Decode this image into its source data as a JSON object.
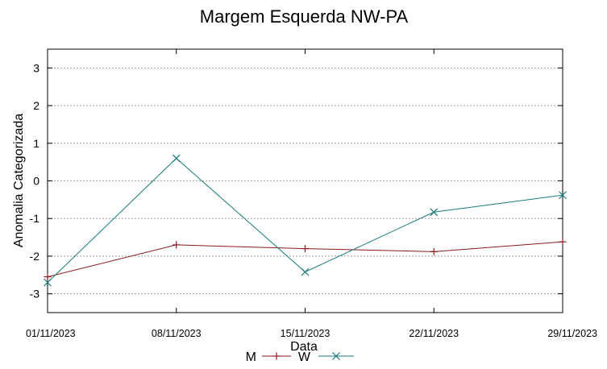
{
  "chart_data": {
    "type": "line",
    "title": "Margem Esquerda NW-PA",
    "xlabel": "Data",
    "ylabel": "Anomalia Categorizada",
    "categories": [
      "01/11/2023",
      "08/11/2023",
      "15/11/2023",
      "22/11/2023",
      "29/11/2023"
    ],
    "ylim": [
      -3.5,
      3.5
    ],
    "yticks": [
      -3,
      -2,
      -1,
      0,
      1,
      2,
      3
    ],
    "grid": "horizontal",
    "legend_position": "bottom",
    "series": [
      {
        "name": "M",
        "color": "#8b1a1a",
        "marker": "plus",
        "values": [
          -2.55,
          -1.7,
          -1.8,
          -1.88,
          -1.62
        ]
      },
      {
        "name": "W",
        "color": "#1a7a7a",
        "marker": "x",
        "values": [
          -2.7,
          0.6,
          -2.42,
          -0.83,
          -0.38
        ]
      }
    ]
  }
}
